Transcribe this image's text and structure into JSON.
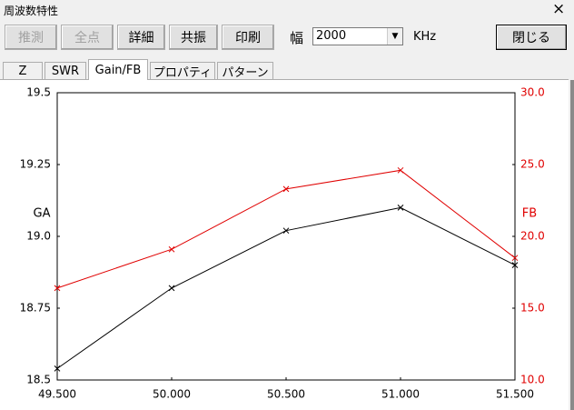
{
  "window": {
    "title": "周波数特性",
    "close": "×"
  },
  "toolbar": {
    "buttons": [
      {
        "label": "推測",
        "enabled": false
      },
      {
        "label": "全点",
        "enabled": false
      },
      {
        "label": "詳細",
        "enabled": true
      },
      {
        "label": "共振",
        "enabled": true
      },
      {
        "label": "印刷",
        "enabled": true
      }
    ],
    "width_label": "幅",
    "width_value": "2000",
    "unit": "KHz",
    "close_button": "閉じる"
  },
  "tabs": {
    "items": [
      "Z",
      "SWR",
      "Gain/FB",
      "プロパティ",
      "パターン"
    ],
    "active": 2
  },
  "chart_data": {
    "type": "line",
    "x": [
      49.5,
      50,
      50.5,
      51,
      51.5
    ],
    "xlim": [
      49.5,
      51.5
    ],
    "xticks": [
      {
        "value": 49.5,
        "label": "49.500"
      },
      {
        "value": 50,
        "label": "50.000"
      },
      {
        "value": 50.5,
        "label": "50.500"
      },
      {
        "value": 51,
        "label": "51.000"
      },
      {
        "value": 51.5,
        "label": "51.500"
      }
    ],
    "ylabel": "GA",
    "y2label": "FB",
    "ylim": [
      18.5,
      19.5
    ],
    "yticks": [
      18.5,
      18.75,
      {
        "value": 19,
        "label": "19.0"
      },
      19.25,
      19.5
    ],
    "y2lim": [
      10,
      30
    ],
    "y2ticks": [
      {
        "value": 10,
        "label": "10.0"
      },
      {
        "value": 15,
        "label": "15.0"
      },
      {
        "value": 20,
        "label": "20.0"
      },
      {
        "value": 25,
        "label": "25.0"
      },
      {
        "value": 30,
        "label": "30.0"
      }
    ],
    "grid": false,
    "series": [
      {
        "name": "GA",
        "color": "#000000",
        "values": [
          18.54,
          18.82,
          19.02,
          19.1,
          18.9
        ]
      },
      {
        "name": "FB",
        "color": "#e00000",
        "axis": "y2",
        "values": [
          16.4,
          19.1,
          23.3,
          24.6,
          18.5
        ]
      }
    ]
  }
}
